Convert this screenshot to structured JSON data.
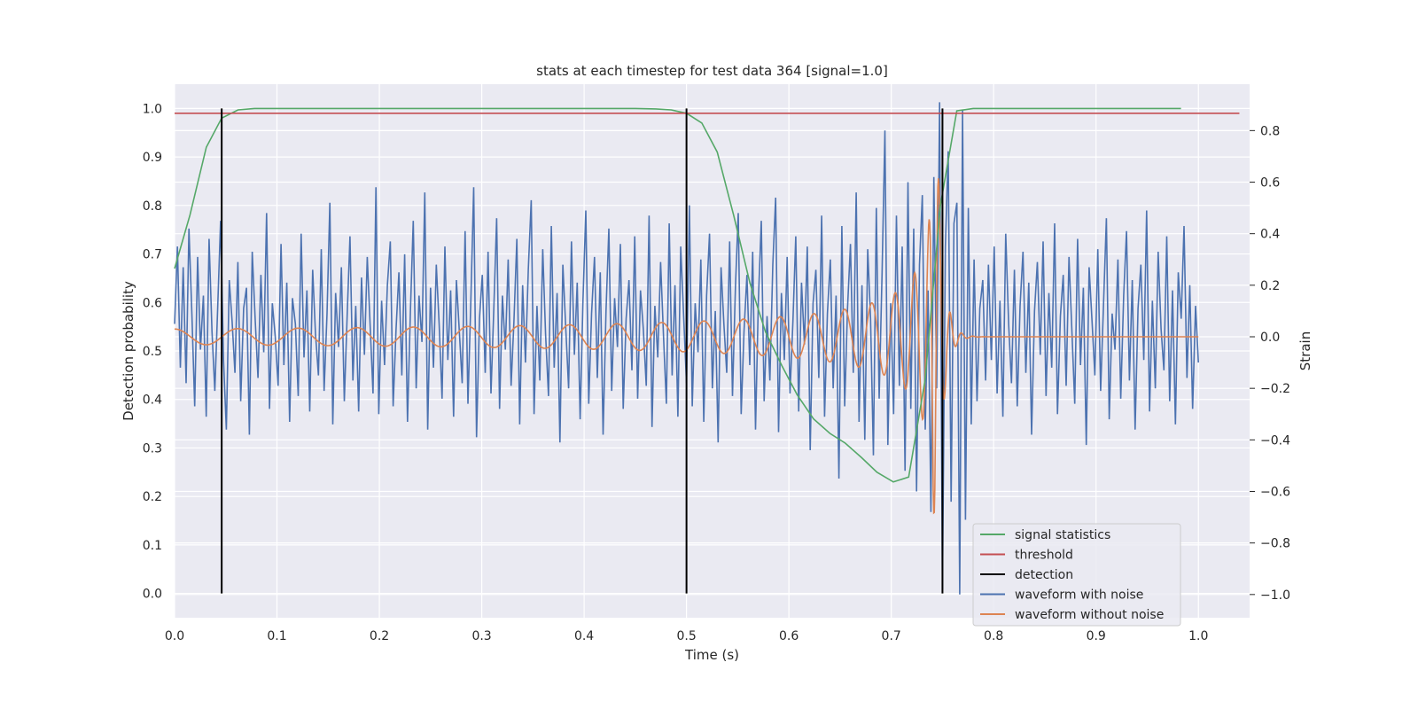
{
  "chart_data": {
    "type": "line",
    "title": "stats at each timestep for test data 364 [signal=1.0]",
    "xlabel": "Time (s)",
    "ylabel": "Detection probability",
    "y2label": "Strain",
    "xlim": [
      0.0,
      1.05
    ],
    "ylim": [
      -0.05,
      1.05
    ],
    "y2lim": [
      -1.09,
      0.98
    ],
    "xticks": [
      "0.0",
      "0.1",
      "0.2",
      "0.3",
      "0.4",
      "0.5",
      "0.6",
      "0.7",
      "0.8",
      "0.9",
      "1.0"
    ],
    "xtick_values": [
      0.0,
      0.1,
      0.2,
      0.3,
      0.4,
      0.5,
      0.6,
      0.7,
      0.8,
      0.9,
      1.0
    ],
    "yticks": [
      "0.0",
      "0.1",
      "0.2",
      "0.3",
      "0.4",
      "0.5",
      "0.6",
      "0.7",
      "0.8",
      "0.9",
      "1.0"
    ],
    "ytick_values": [
      0.0,
      0.1,
      0.2,
      0.3,
      0.4,
      0.5,
      0.6,
      0.7,
      0.8,
      0.9,
      1.0
    ],
    "y2ticks": [
      "−1.0",
      "−0.8",
      "−0.6",
      "−0.4",
      "−0.2",
      "0.0",
      "0.2",
      "0.4",
      "0.6",
      "0.8"
    ],
    "y2tick_values": [
      -1.0,
      -0.8,
      -0.6,
      -0.4,
      -0.2,
      0.0,
      0.2,
      0.4,
      0.6,
      0.8
    ],
    "grid": true,
    "legend_position": "bottom-right",
    "series": [
      {
        "name": "signal statistics",
        "axis": "left",
        "color": "#55a868",
        "x": [
          0.0,
          0.015,
          0.031,
          0.046,
          0.062,
          0.078,
          0.093,
          0.109,
          0.2,
          0.3,
          0.4,
          0.45,
          0.47,
          0.485,
          0.5,
          0.515,
          0.53,
          0.546,
          0.562,
          0.577,
          0.593,
          0.608,
          0.624,
          0.64,
          0.655,
          0.671,
          0.686,
          0.702,
          0.717,
          0.733,
          0.748,
          0.764,
          0.78,
          0.8,
          0.9,
          0.983
        ],
        "y": [
          0.67,
          0.78,
          0.92,
          0.98,
          0.997,
          1.0,
          1.0,
          1.0,
          1.0,
          1.0,
          1.0,
          1.0,
          0.999,
          0.997,
          0.99,
          0.97,
          0.91,
          0.78,
          0.64,
          0.54,
          0.47,
          0.41,
          0.36,
          0.33,
          0.31,
          0.28,
          0.25,
          0.23,
          0.24,
          0.44,
          0.8,
          0.995,
          1.0,
          1.0,
          1.0,
          1.0
        ]
      },
      {
        "name": "threshold",
        "axis": "left",
        "color": "#c44e52",
        "x": [
          0.0,
          1.04
        ],
        "y": [
          0.99,
          0.99
        ]
      },
      {
        "name": "detection",
        "axis": "left",
        "color": "#000000",
        "x": [
          0.046,
          0.5,
          0.75
        ],
        "y_from": 0.0,
        "y_to": 1.0
      },
      {
        "name": "waveform with noise",
        "axis": "right",
        "color": "#4c72b0",
        "x_range": [
          0.0,
          1.0
        ],
        "y": [
          0.05,
          0.35,
          -0.12,
          0.27,
          -0.18,
          0.42,
          0.09,
          -0.27,
          0.31,
          -0.05,
          0.16,
          -0.31,
          0.38,
          0.02,
          -0.21,
          0.12,
          0.45,
          -0.09,
          -0.36,
          0.22,
          0.06,
          -0.14,
          0.29,
          -0.25,
          0.11,
          0.19,
          -0.38,
          0.33,
          0.07,
          -0.16,
          0.24,
          -0.06,
          0.48,
          -0.28,
          0.13,
          0.0,
          -0.19,
          0.36,
          -0.11,
          0.21,
          -0.33,
          0.15,
          0.05,
          -0.23,
          0.4,
          -0.08,
          0.18,
          -0.29,
          0.26,
          0.01,
          -0.15,
          0.34,
          -0.21,
          0.09,
          0.52,
          -0.34,
          0.17,
          -0.04,
          0.27,
          -0.25,
          0.08,
          0.39,
          -0.17,
          0.12,
          -0.29,
          0.23,
          -0.07,
          0.31,
          0.04,
          -0.22,
          0.58,
          -0.3,
          0.14,
          -0.11,
          0.2,
          0.37,
          -0.27,
          0.03,
          0.25,
          -0.15,
          0.32,
          -0.33,
          0.1,
          0.45,
          -0.2,
          0.16,
          -0.02,
          0.56,
          -0.36,
          0.19,
          -0.12,
          0.28,
          0.05,
          -0.24,
          0.35,
          -0.09,
          0.18,
          -0.31,
          0.22,
          0.02,
          -0.18,
          0.41,
          -0.26,
          0.13,
          0.58,
          -0.39,
          0.07,
          0.24,
          -0.14,
          0.33,
          -0.22,
          0.11,
          0.46,
          -0.28,
          0.16,
          -0.05,
          0.3,
          -0.19,
          0.06,
          0.38,
          -0.34,
          0.2,
          -0.1,
          0.26,
          0.53,
          -0.3,
          0.12,
          -0.17,
          0.34,
          0.01,
          -0.23,
          0.43,
          -0.12,
          0.17,
          -0.41,
          0.28,
          0.04,
          -0.2,
          0.37,
          -0.07,
          0.21,
          -0.32,
          0.14,
          0.49,
          -0.26,
          0.09,
          0.31,
          -0.16,
          0.25,
          -0.38,
          0.1,
          0.42,
          -0.21,
          0.15,
          -0.04,
          0.36,
          -0.28,
          0.07,
          0.22,
          -0.13,
          0.39,
          -0.24,
          0.18,
          0.03,
          -0.19,
          0.47,
          -0.35,
          0.12,
          -0.08,
          0.29,
          0.0,
          -0.26,
          0.44,
          -0.15,
          0.2,
          -0.31,
          0.35,
          0.08,
          -0.18,
          0.51,
          -0.27,
          0.13,
          -0.06,
          0.3,
          -0.33,
          0.16,
          0.4,
          -0.2,
          0.1,
          -0.41,
          0.27,
          0.05,
          -0.14,
          0.37,
          -0.23,
          0.19,
          0.48,
          -0.3,
          0.02,
          0.24,
          -0.11,
          0.33,
          -0.36,
          0.14,
          0.45,
          -0.25,
          0.08,
          -0.17,
          0.28,
          0.54,
          -0.37,
          0.17,
          -0.09,
          0.31,
          -0.22,
          0.06,
          0.39,
          -0.29,
          0.21,
          -0.03,
          0.35,
          -0.44,
          0.13,
          0.26,
          -0.16,
          0.47,
          -0.31,
          0.09,
          0.3,
          -0.2,
          0.16,
          -0.55,
          0.43,
          -0.27,
          0.11,
          0.36,
          -0.14,
          0.56,
          -0.33,
          0.2,
          -0.4,
          0.34,
          0.07,
          -0.46,
          0.5,
          -0.24,
          0.25,
          0.8,
          -0.42,
          0.13,
          -0.3,
          0.47,
          -0.19,
          0.35,
          -0.52,
          0.6,
          -0.28,
          0.42,
          -0.6,
          0.28,
          0.55,
          -0.36,
          0.18,
          -0.68,
          0.62,
          -0.2,
          0.91,
          -0.98,
          0.35,
          0.72,
          -0.64,
          0.44,
          0.52,
          -1.0,
          0.88,
          -0.71,
          0.5,
          -0.34,
          0.3,
          -0.25,
          0.11,
          0.22,
          -0.17,
          0.28,
          -0.09,
          0.35,
          -0.22,
          0.14,
          -0.31,
          0.4,
          0.05,
          -0.18,
          0.26,
          -0.27,
          0.12,
          0.33,
          -0.14,
          0.21,
          -0.38,
          0.1,
          0.29,
          -0.07,
          0.37,
          -0.23,
          0.17,
          -0.12,
          0.44,
          -0.3,
          0.08,
          0.24,
          -0.19,
          0.31,
          0.02,
          -0.26,
          0.38,
          -0.11,
          0.19,
          -0.42,
          0.27,
          0.06,
          -0.15,
          0.34,
          -0.21,
          0.13,
          0.46,
          -0.32,
          0.09,
          -0.05,
          0.3,
          -0.24,
          0.16,
          0.41,
          -0.17,
          0.22,
          -0.36,
          0.11,
          0.28,
          -0.09,
          0.49,
          -0.29,
          0.14,
          -0.2,
          0.33,
          0.03,
          -0.13,
          0.39,
          -0.25,
          0.18,
          -0.34,
          0.25,
          0.07,
          0.43,
          -0.16,
          0.2,
          -0.28,
          0.12,
          -0.1
        ]
      },
      {
        "name": "waveform without noise",
        "axis": "right",
        "color": "#dd8452",
        "x_range": [
          0.0,
          1.0
        ],
        "chirp_envelope": [
          0.03,
          0.9
        ],
        "merger_time": 0.745
      }
    ]
  }
}
